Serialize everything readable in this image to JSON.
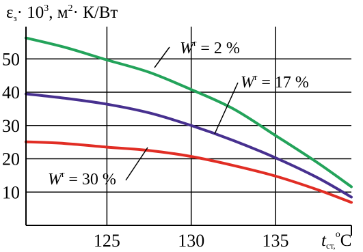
{
  "chart_data": {
    "type": "line",
    "ylabel": {
      "prefix": "ε",
      "subscript": "з",
      "multiplier": "· 10",
      "superscript": "3",
      "units": ", м",
      "units_superscript": "2",
      "units_rest": "· К/Вт"
    },
    "xlabel": {
      "italic": "t",
      "subscript": "ст,",
      "degree": "o",
      "units": "C"
    },
    "xlim": [
      120.2,
      139.5
    ],
    "ylim": [
      0,
      59.7
    ],
    "x_ticks": [
      125,
      130,
      135
    ],
    "y_ticks": [
      10,
      20,
      30,
      40,
      50
    ],
    "grid": true,
    "series": [
      {
        "name": "Wr = 2 %",
        "label_main": "W",
        "label_sup": "r",
        "label_rest": " = 2 %",
        "color": "#23a35a",
        "points": [
          [
            120.2,
            56.3
          ],
          [
            122.5,
            53.5
          ],
          [
            125,
            49.7
          ],
          [
            127.5,
            46.0
          ],
          [
            130,
            40.8
          ],
          [
            132.5,
            35.0
          ],
          [
            135,
            27.0
          ],
          [
            137.5,
            18.8
          ],
          [
            139.5,
            11.6
          ]
        ]
      },
      {
        "name": "Wr = 17 %",
        "label_main": "W",
        "label_sup": "r",
        "label_rest": " = 17 %",
        "color": "#47308f",
        "points": [
          [
            120.2,
            39.5
          ],
          [
            122.5,
            38.2
          ],
          [
            125,
            36.4
          ],
          [
            127.5,
            33.8
          ],
          [
            130,
            30.0
          ],
          [
            132.5,
            25.5
          ],
          [
            135,
            20.3
          ],
          [
            137.5,
            14.3
          ],
          [
            139.5,
            8.5
          ]
        ]
      },
      {
        "name": "Wr = 30 %",
        "label_main": "W",
        "label_sup": "r",
        "label_rest": " = 30 %",
        "color": "#e12d24",
        "points": [
          [
            120.2,
            25.1
          ],
          [
            122.5,
            24.6
          ],
          [
            125,
            23.5
          ],
          [
            127.5,
            22.5
          ],
          [
            130,
            20.7
          ],
          [
            132.5,
            18.0
          ],
          [
            135,
            14.8
          ],
          [
            137.5,
            10.7
          ],
          [
            139.5,
            6.9
          ]
        ]
      }
    ]
  }
}
